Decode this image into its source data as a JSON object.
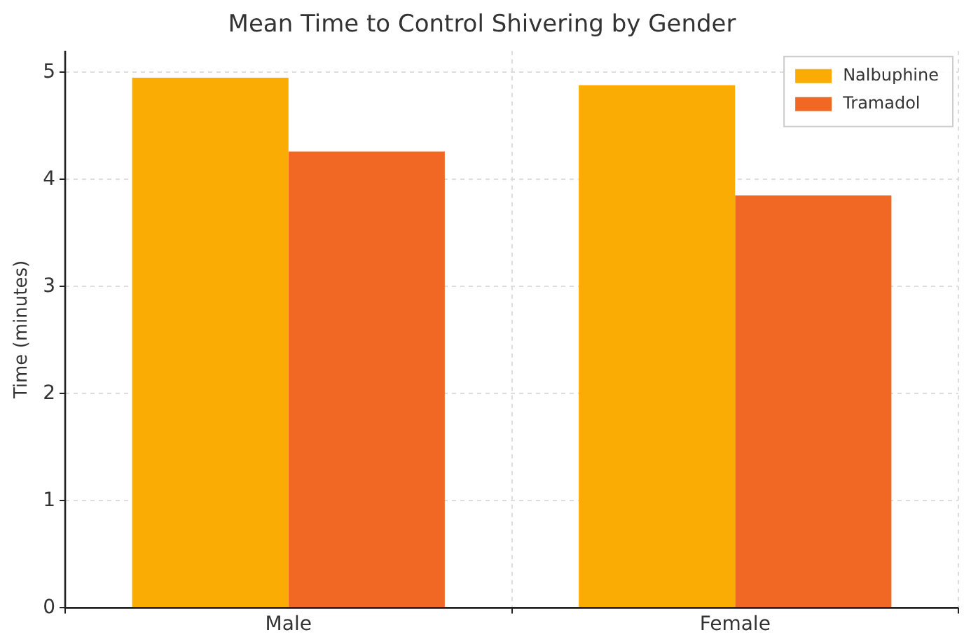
{
  "chart_data": {
    "type": "bar",
    "title": "Mean Time to Control Shivering by Gender",
    "ylabel": "Time (minutes)",
    "categories": [
      "Male",
      "Female"
    ],
    "series": [
      {
        "name": "Nalbuphine",
        "color": "#fbac04",
        "values": [
          4.95,
          4.88
        ]
      },
      {
        "name": "Tramadol",
        "color": "#f06823",
        "values": [
          4.26,
          3.85
        ]
      }
    ],
    "ylim": [
      0,
      5.2
    ],
    "yticks": [
      0,
      1,
      2,
      3,
      4,
      5
    ],
    "grid": true,
    "legend": "top right"
  }
}
